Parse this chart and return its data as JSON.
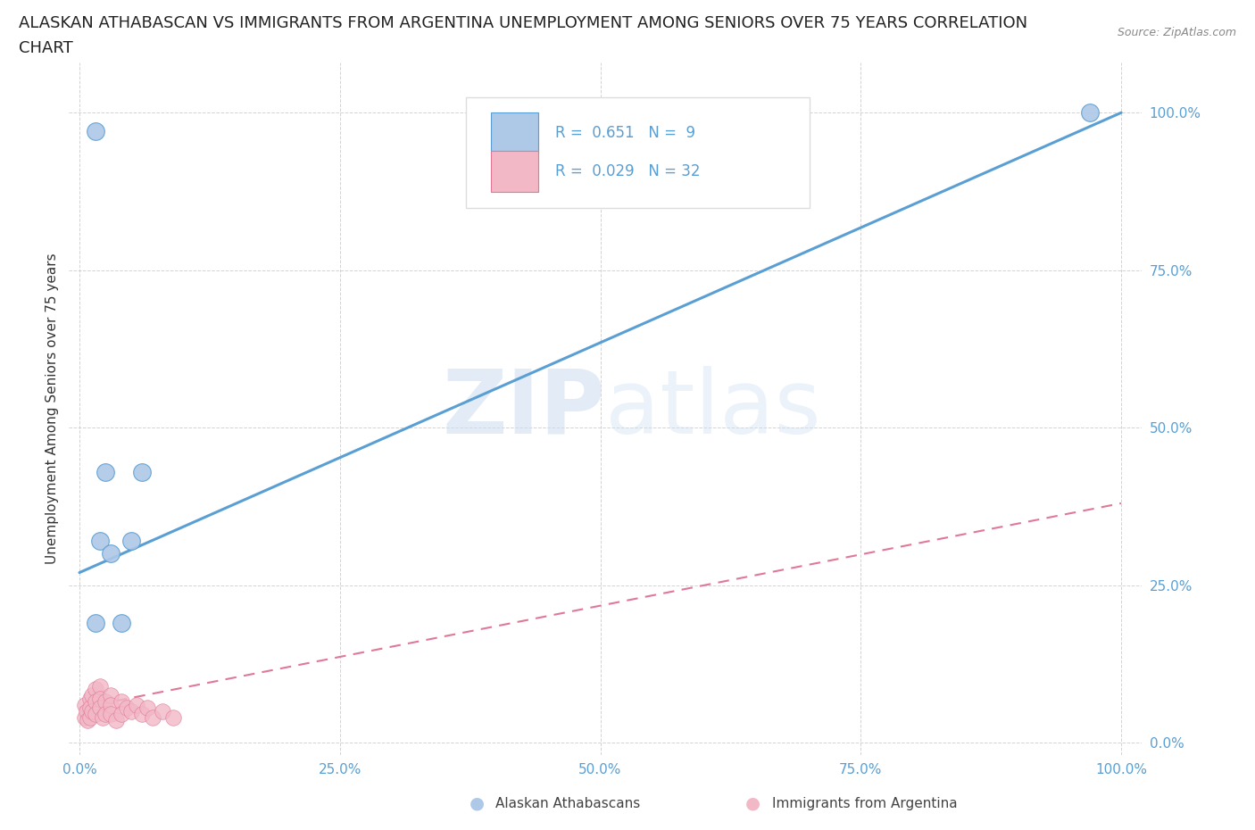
{
  "title_line1": "ALASKAN ATHABASCAN VS IMMIGRANTS FROM ARGENTINA UNEMPLOYMENT AMONG SENIORS OVER 75 YEARS CORRELATION",
  "title_line2": "CHART",
  "source_text": "Source: ZipAtlas.com",
  "ylabel": "Unemployment Among Seniors over 75 years",
  "xlim": [
    -0.01,
    1.02
  ],
  "ylim": [
    -0.02,
    1.08
  ],
  "xticks": [
    0,
    0.25,
    0.5,
    0.75,
    1.0
  ],
  "xticklabels": [
    "0.0%",
    "25.0%",
    "50.0%",
    "75.0%",
    "100.0%"
  ],
  "yticks": [
    0,
    0.25,
    0.5,
    0.75,
    1.0
  ],
  "yticklabels": [
    "0.0%",
    "25.0%",
    "50.0%",
    "75.0%",
    "100.0%"
  ],
  "blue_scatter_x": [
    0.015,
    0.97,
    0.02,
    0.025,
    0.03,
    0.04,
    0.05,
    0.06,
    0.015
  ],
  "blue_scatter_y": [
    0.97,
    1.0,
    0.32,
    0.43,
    0.3,
    0.19,
    0.32,
    0.43,
    0.19
  ],
  "pink_scatter_x": [
    0.005,
    0.005,
    0.007,
    0.008,
    0.01,
    0.01,
    0.01,
    0.012,
    0.012,
    0.015,
    0.015,
    0.015,
    0.02,
    0.02,
    0.02,
    0.022,
    0.025,
    0.025,
    0.03,
    0.03,
    0.03,
    0.035,
    0.04,
    0.04,
    0.045,
    0.05,
    0.055,
    0.06,
    0.065,
    0.07,
    0.08,
    0.09
  ],
  "pink_scatter_y": [
    0.06,
    0.04,
    0.05,
    0.035,
    0.07,
    0.055,
    0.04,
    0.075,
    0.05,
    0.085,
    0.065,
    0.045,
    0.09,
    0.07,
    0.055,
    0.04,
    0.065,
    0.045,
    0.075,
    0.06,
    0.045,
    0.035,
    0.065,
    0.045,
    0.055,
    0.05,
    0.06,
    0.045,
    0.055,
    0.04,
    0.05,
    0.04
  ],
  "blue_line_x": [
    0.0,
    1.0
  ],
  "blue_line_y": [
    0.27,
    1.0
  ],
  "pink_line_x": [
    0.0,
    1.0
  ],
  "pink_line_y": [
    0.055,
    0.38
  ],
  "blue_color": "#aec8e8",
  "pink_color": "#f2b8c6",
  "blue_line_color": "#5a9fd4",
  "pink_line_color": "#e07898",
  "r_blue": 0.651,
  "n_blue": 9,
  "r_pink": 0.029,
  "n_pink": 32,
  "watermark_zip": "ZIP",
  "watermark_atlas": "atlas",
  "background_color": "#ffffff",
  "grid_color": "#c8c8c8",
  "title_fontsize": 13,
  "axis_label_fontsize": 11,
  "tick_fontsize": 11,
  "legend_fontsize": 12
}
